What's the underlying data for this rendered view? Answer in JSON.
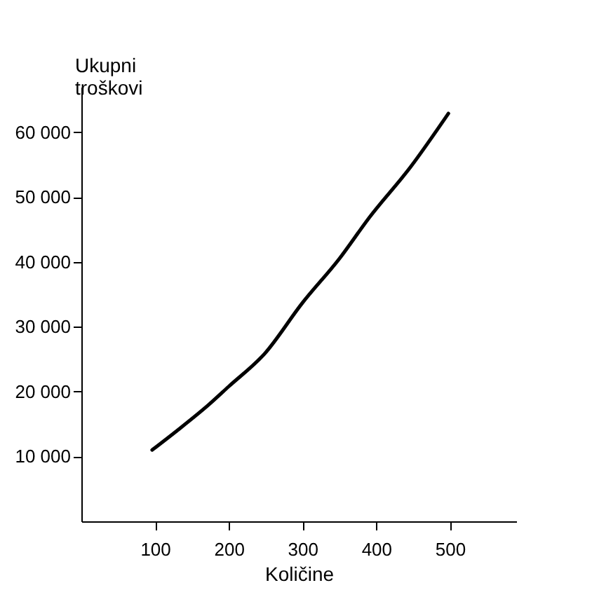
{
  "chart_data": {
    "type": "line",
    "xlabel": "Količine",
    "ylabel": "Ukupni troškovi",
    "x": [
      96,
      130,
      173,
      200,
      249,
      300,
      350,
      391,
      447,
      498
    ],
    "series": [
      {
        "color": "#000000",
        "values": [
          11000,
          14000,
          18000,
          20800,
          25900,
          33700,
          40500,
          46900,
          54700,
          62900
        ]
      }
    ],
    "xlim": [
      0,
      590
    ],
    "ylim": [
      0,
      67000
    ],
    "xticks": [
      100,
      200,
      300,
      400,
      500
    ],
    "yticks": [
      {
        "value": 10000,
        "label": "10 000"
      },
      {
        "value": 20000,
        "label": "20 000"
      },
      {
        "value": 30000,
        "label": "30 000"
      },
      {
        "value": 40000,
        "label": "40 000"
      },
      {
        "value": 50000,
        "label": "50 000"
      },
      {
        "value": 60000,
        "label": "60 000"
      }
    ],
    "grid": false,
    "marker": "none",
    "line_style": "solid"
  }
}
